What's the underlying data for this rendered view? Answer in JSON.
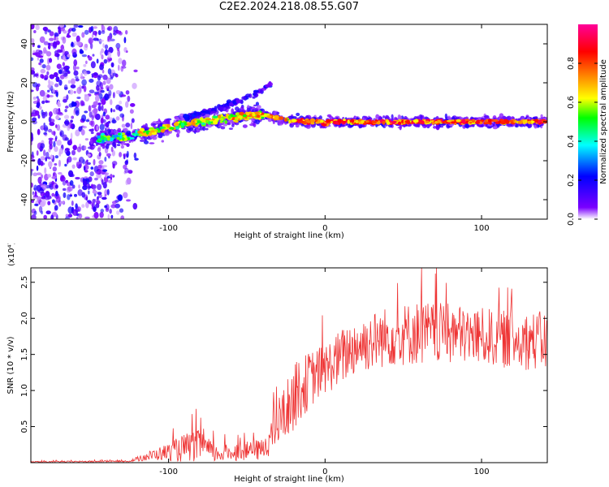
{
  "title": "C2E2.2024.218.08.55.G07",
  "chart_data": [
    {
      "type": "heatmap",
      "xlabel": "Height of straight line (km)",
      "ylabel": "Frequency (Hz)",
      "xlim": [
        -188,
        142
      ],
      "ylim": [
        -50,
        50
      ],
      "xticks": [
        -100,
        0,
        100
      ],
      "yticks": [
        -40,
        -20,
        0,
        20,
        40
      ],
      "colorbar": {
        "label": "Normalized spectral amplitude",
        "range": [
          0,
          1
        ],
        "ticks": [
          "0.0",
          "0.2",
          "0.4",
          "0.6",
          "0.8"
        ],
        "colors": [
          "#ffffff",
          "#7a00ff",
          "#0000ff",
          "#00ffff",
          "#00ff00",
          "#ffff00",
          "#ff8000",
          "#ff0000",
          "#ff00ff"
        ]
      },
      "ridge": {
        "x": [
          -145,
          -130,
          -110,
          -90,
          -70,
          -50,
          -42,
          -30,
          -15,
          -2,
          0,
          2,
          15,
          50,
          100,
          142
        ],
        "frequency": [
          -9,
          -8,
          -5,
          -1,
          1,
          3,
          4,
          2,
          0,
          0,
          -2,
          0,
          0,
          0,
          0,
          0
        ]
      },
      "secondary_branch": {
        "x": [
          -90,
          -75,
          -60,
          -45,
          -33
        ],
        "frequency": [
          2,
          5,
          9,
          14,
          20
        ]
      },
      "noise_region_x": [
        -188,
        -120
      ]
    },
    {
      "type": "line",
      "xlabel": "Height of straight line (km)",
      "ylabel": "SNR (10 * v/v)",
      "multiplier": "(x10⁴)",
      "xlim": [
        -188,
        142
      ],
      "ylim": [
        0,
        2.7
      ],
      "xticks": [
        -100,
        0,
        100
      ],
      "yticks": [
        "0.5",
        "1.0",
        "1.5",
        "2.0",
        "2.5"
      ],
      "color": "#ee3333",
      "envelope": {
        "x": [
          -188,
          -125,
          -115,
          -100,
          -90,
          -80,
          -70,
          -55,
          -40,
          -35,
          -30,
          -20,
          -10,
          0,
          10,
          15,
          20,
          40,
          60,
          80,
          100,
          120,
          142
        ],
        "mean": [
          0.01,
          0.02,
          0.08,
          0.15,
          0.2,
          0.24,
          0.12,
          0.15,
          0.18,
          0.35,
          0.55,
          0.9,
          1.15,
          1.3,
          1.45,
          1.55,
          1.62,
          1.75,
          1.8,
          1.78,
          1.75,
          1.7,
          1.68
        ],
        "spread": [
          0.01,
          0.01,
          0.06,
          0.12,
          0.2,
          0.22,
          0.12,
          0.12,
          0.15,
          0.25,
          0.35,
          0.45,
          0.4,
          0.35,
          0.4,
          0.4,
          0.4,
          0.42,
          0.45,
          0.42,
          0.4,
          0.4,
          0.42
        ]
      }
    }
  ]
}
